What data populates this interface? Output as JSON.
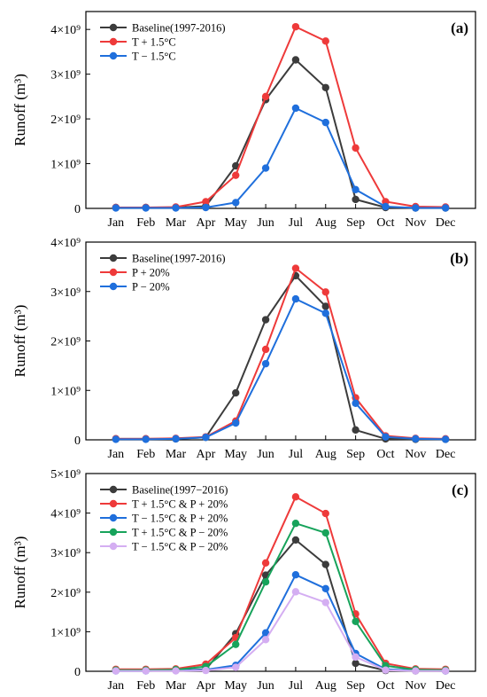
{
  "chart_data": [
    {
      "panel": "(a)",
      "type": "line",
      "categories": [
        "Jan",
        "Feb",
        "Mar",
        "Apr",
        "May",
        "Jun",
        "Jul",
        "Aug",
        "Sep",
        "Oct",
        "Nov",
        "Dec"
      ],
      "ylabel": "Runoff (m³)",
      "ylim": [
        0,
        4.4
      ],
      "y_unit_factor": "×10⁹",
      "y_ticks": [
        "0",
        "1×10⁹",
        "2×10⁹",
        "3×10⁹",
        "4×10⁹"
      ],
      "y_tick_values": [
        0,
        1,
        2,
        3,
        4
      ],
      "legend_position": "top-left",
      "series": [
        {
          "name": "Baseline(1997-2016)",
          "color": "#3c3c3c",
          "values": [
            0.02,
            0.02,
            0.02,
            0.05,
            0.95,
            2.43,
            3.32,
            2.7,
            0.2,
            0.02,
            0.01,
            0.01
          ]
        },
        {
          "name": "T + 1.5°C",
          "color": "#ee3a3a",
          "values": [
            0.02,
            0.02,
            0.03,
            0.15,
            0.74,
            2.5,
            4.06,
            3.74,
            1.35,
            0.15,
            0.04,
            0.03
          ]
        },
        {
          "name": "T − 1.5°C",
          "color": "#1f6fdc",
          "values": [
            0.01,
            0.01,
            0.01,
            0.02,
            0.13,
            0.9,
            2.24,
            1.92,
            0.42,
            0.04,
            0.01,
            0.01
          ]
        }
      ]
    },
    {
      "panel": "(b)",
      "type": "line",
      "categories": [
        "Jan",
        "Feb",
        "Mar",
        "Apr",
        "May",
        "Jun",
        "Jul",
        "Aug",
        "Sep",
        "Oct",
        "Nov",
        "Dec"
      ],
      "ylabel": "Runoff (m³)",
      "ylim": [
        0,
        4.0
      ],
      "y_unit_factor": "×10⁹",
      "y_ticks": [
        "0",
        "1×10⁹",
        "2×10⁹",
        "3×10⁹",
        "4×10⁹"
      ],
      "y_tick_values": [
        0,
        1,
        2,
        3,
        4
      ],
      "legend_position": "top-left",
      "series": [
        {
          "name": "Baseline(1997-2016)",
          "color": "#3c3c3c",
          "values": [
            0.02,
            0.02,
            0.02,
            0.05,
            0.95,
            2.43,
            3.32,
            2.7,
            0.2,
            0.02,
            0.01,
            0.01
          ]
        },
        {
          "name": "P + 20%",
          "color": "#ee3a3a",
          "values": [
            0.02,
            0.02,
            0.03,
            0.06,
            0.38,
            1.83,
            3.47,
            2.99,
            0.85,
            0.08,
            0.03,
            0.02
          ]
        },
        {
          "name": "P − 20%",
          "color": "#1f6fdc",
          "values": [
            0.01,
            0.01,
            0.02,
            0.05,
            0.34,
            1.54,
            2.85,
            2.56,
            0.74,
            0.06,
            0.02,
            0.01
          ]
        }
      ]
    },
    {
      "panel": "(c)",
      "type": "line",
      "categories": [
        "Jan",
        "Feb",
        "Mar",
        "Apr",
        "May",
        "Jun",
        "Jul",
        "Aug",
        "Sep",
        "Oct",
        "Nov",
        "Dec"
      ],
      "ylabel": "Runoff (m³)",
      "ylim": [
        0,
        5.0
      ],
      "y_unit_factor": "×10⁹",
      "y_ticks": [
        "0",
        "1×10⁹",
        "2×10⁹",
        "3×10⁹",
        "4×10⁹",
        "5×10⁹"
      ],
      "y_tick_values": [
        0,
        1,
        2,
        3,
        4,
        5
      ],
      "legend_position": "top-left",
      "series": [
        {
          "name": "Baseline(1997−2016)",
          "color": "#3c3c3c",
          "values": [
            0.02,
            0.02,
            0.02,
            0.05,
            0.95,
            2.43,
            3.32,
            2.7,
            0.2,
            0.02,
            0.01,
            0.01
          ]
        },
        {
          "name": "T + 1.5°C & P + 20%",
          "color": "#ee3a3a",
          "values": [
            0.05,
            0.05,
            0.06,
            0.18,
            0.85,
            2.74,
            4.41,
            3.99,
            1.45,
            0.2,
            0.06,
            0.05
          ]
        },
        {
          "name": "T − 1.5°C & P + 20%",
          "color": "#1f6fdc",
          "values": [
            0.01,
            0.01,
            0.02,
            0.04,
            0.15,
            0.97,
            2.44,
            2.09,
            0.45,
            0.05,
            0.02,
            0.01
          ]
        },
        {
          "name": "T + 1.5°C & P − 20%",
          "color": "#17a35b",
          "values": [
            0.03,
            0.03,
            0.04,
            0.12,
            0.68,
            2.26,
            3.74,
            3.5,
            1.26,
            0.14,
            0.04,
            0.03
          ]
        },
        {
          "name": "T − 1.5°C & P − 20%",
          "color": "#d4aef2",
          "values": [
            0.01,
            0.01,
            0.01,
            0.02,
            0.1,
            0.8,
            2.01,
            1.74,
            0.36,
            0.03,
            0.01,
            0.01
          ]
        }
      ]
    }
  ]
}
